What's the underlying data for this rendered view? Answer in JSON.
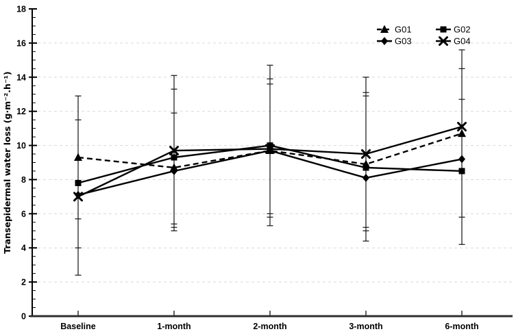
{
  "figure": {
    "background": "#ffffff",
    "ink_color": "#000000",
    "axis_color": "#2e2e2e",
    "grid_color": "#d9d9d9"
  },
  "chart_data": {
    "type": "line",
    "title": "",
    "xlabel": "",
    "ylabel": "Transepidermal water loss (g·m⁻².h⁻¹)",
    "ylim": [
      0,
      18
    ],
    "ytick_step": 2,
    "yminor_step": 0.5,
    "ytick_labels": [
      "0",
      "2",
      "4",
      "6",
      "8",
      "10",
      "12",
      "14",
      "16",
      "18"
    ],
    "grid": {
      "horizontal": true,
      "style": "dashed",
      "levels": [
        2,
        4,
        6,
        8,
        10,
        12,
        14,
        16
      ]
    },
    "categories": [
      "Baseline",
      "1-month",
      "2-month",
      "3-month",
      "6-month"
    ],
    "series": [
      {
        "name": "G01",
        "marker": "triangle",
        "line_style": "dashed",
        "color": "#000000",
        "values": [
          9.3,
          8.7,
          9.7,
          8.9,
          10.7
        ]
      },
      {
        "name": "G02",
        "marker": "square",
        "line_style": "solid",
        "color": "#000000",
        "values": [
          7.8,
          9.3,
          10.0,
          8.7,
          8.5
        ]
      },
      {
        "name": "G03",
        "marker": "diamond",
        "line_style": "solid",
        "color": "#000000",
        "values": [
          7.1,
          8.5,
          9.7,
          8.1,
          9.2
        ]
      },
      {
        "name": "G04",
        "marker": "x",
        "line_style": "solid",
        "color": "#000000",
        "values": [
          7.0,
          9.7,
          9.8,
          9.5,
          11.1
        ]
      }
    ],
    "error_bars": [
      {
        "category": "Baseline",
        "low": 2.4,
        "high": 12.9,
        "caps": [
          12.9,
          11.5,
          5.7,
          4.0,
          2.4
        ]
      },
      {
        "category": "1-month",
        "low": 5.0,
        "high": 14.1,
        "caps": [
          14.1,
          13.3,
          11.9,
          5.4,
          5.2,
          5.0
        ]
      },
      {
        "category": "2-month",
        "low": 5.3,
        "high": 14.7,
        "caps": [
          14.7,
          13.9,
          13.6,
          6.0,
          5.8,
          5.3
        ]
      },
      {
        "category": "3-month",
        "low": 4.4,
        "high": 14.0,
        "caps": [
          14.0,
          13.1,
          12.9,
          5.2,
          5.0,
          4.4
        ]
      },
      {
        "category": "6-month",
        "low": 4.2,
        "high": 15.6,
        "caps": [
          15.6,
          14.5,
          12.7,
          5.8,
          4.2
        ]
      }
    ],
    "legend": {
      "position": "top-right",
      "columns": 2,
      "rows": 2,
      "order": [
        "G01",
        "G02",
        "G03",
        "G04"
      ]
    }
  }
}
